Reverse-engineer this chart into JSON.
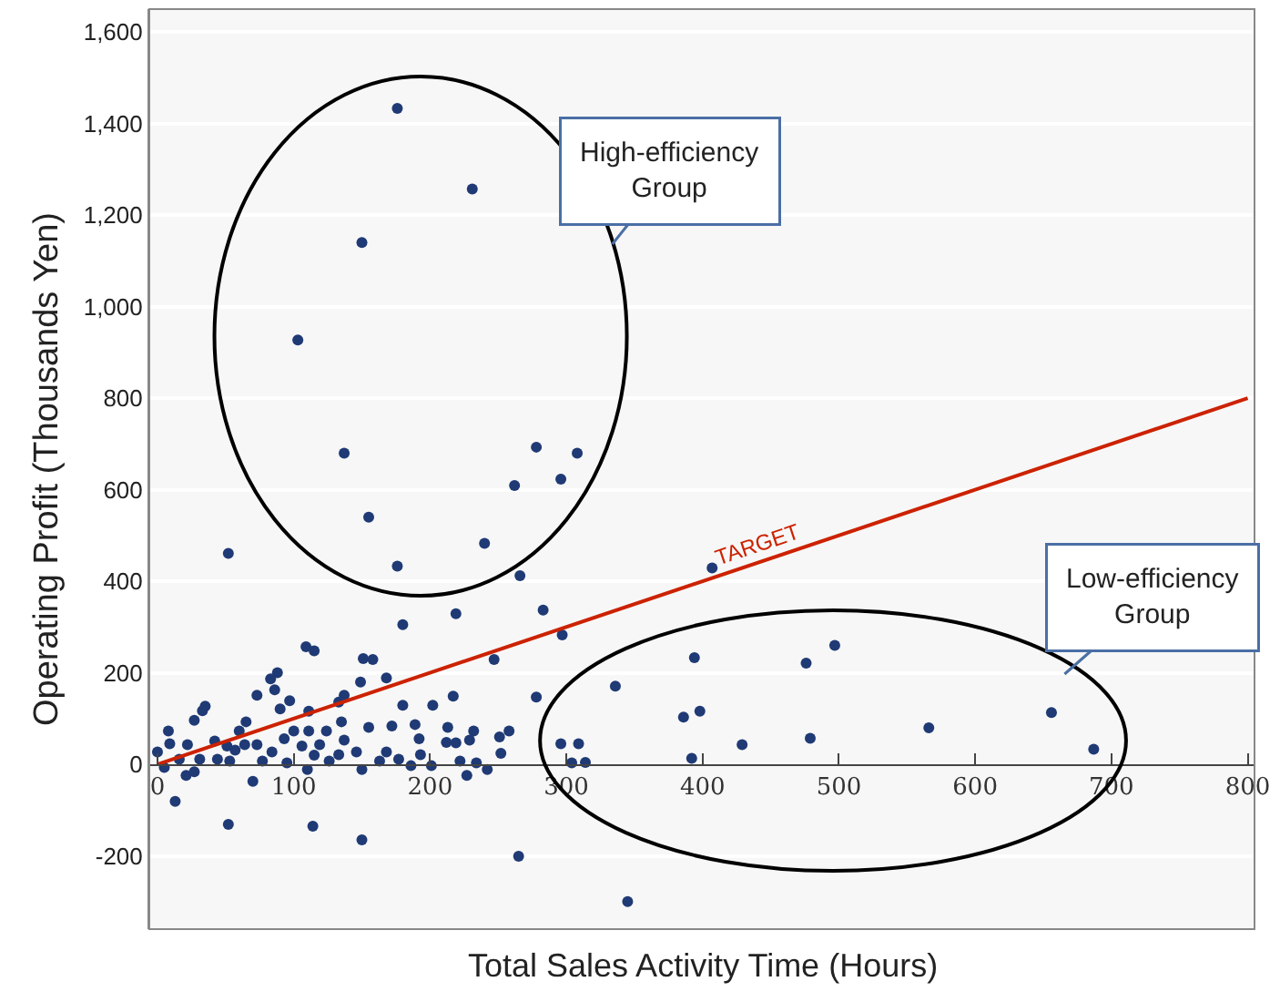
{
  "chart_data": {
    "type": "scatter",
    "xlabel": "Total Sales Activity Time (Hours)",
    "ylabel": "Operating Profit (Thousands Yen)",
    "xlim": [
      -6,
      805
    ],
    "ylim": [
      -360,
      1650
    ],
    "xticks": [
      0,
      100,
      200,
      300,
      400,
      500,
      600,
      700,
      800
    ],
    "yticks": [
      {
        "value": -200,
        "label": "-200"
      },
      0,
      200,
      400,
      600,
      800,
      {
        "value": 1000,
        "label": "1,000"
      },
      {
        "value": 1200,
        "label": "1,200"
      },
      {
        "value": 1400,
        "label": "1,400"
      },
      {
        "value": 1600,
        "label": "1,600"
      }
    ],
    "grid": "y",
    "marker": "circle",
    "annotations": [
      "High-efficiency\nGroup",
      "Low-efficiency\nGroup"
    ],
    "series": [
      {
        "color": "#1f3a75",
        "x": [
          176,
          231,
          150,
          103,
          137,
          278,
          308,
          262,
          296,
          155,
          240,
          176,
          52,
          266,
          283,
          297,
          407,
          394,
          497,
          476,
          336,
          278,
          386,
          398,
          656,
          566,
          479,
          429,
          296,
          309,
          304,
          314,
          392,
          687,
          258,
          265,
          345,
          180,
          219,
          247,
          109,
          115,
          151,
          158,
          88,
          83,
          86,
          73,
          97,
          90,
          149,
          168,
          137,
          133,
          35,
          33,
          27,
          65,
          60,
          111,
          180,
          202,
          217,
          135,
          155,
          172,
          189,
          213,
          232,
          251,
          8,
          9,
          22,
          42,
          51,
          100,
          106,
          119,
          124,
          111,
          192,
          212,
          219,
          229,
          252,
          193,
          168,
          146,
          133,
          84,
          73,
          64,
          44,
          31,
          16,
          0,
          5,
          21,
          27,
          53,
          77,
          95,
          110,
          126,
          150,
          163,
          177,
          186,
          201,
          222,
          234,
          242,
          227,
          70,
          13,
          52,
          114,
          150,
          57,
          93,
          115,
          137
        ],
        "values": [
          1433,
          1257,
          1140,
          927,
          680,
          693,
          680,
          609,
          623,
          540,
          483,
          433,
          461,
          412,
          337,
          283,
          429,
          233,
          260,
          221,
          171,
          147,
          103,
          116,
          113,
          80,
          57,
          43,
          45,
          45,
          3,
          4,
          13,
          33,
          73,
          -201,
          -300,
          305,
          329,
          229,
          257,
          248,
          231,
          229,
          200,
          187,
          163,
          151,
          139,
          121,
          180,
          189,
          151,
          136,
          127,
          117,
          96,
          93,
          73,
          116,
          129,
          129,
          149,
          93,
          81,
          84,
          87,
          81,
          73,
          60,
          73,
          45,
          43,
          51,
          40,
          73,
          40,
          43,
          73,
          73,
          56,
          48,
          47,
          53,
          24,
          21,
          27,
          27,
          21,
          27,
          43,
          43,
          11,
          11,
          11,
          27,
          -7,
          -24,
          -16,
          7,
          7,
          3,
          -11,
          7,
          -11,
          7,
          11,
          -3,
          -3,
          7,
          3,
          -11,
          -24,
          -37,
          -81,
          -131,
          -135,
          -165,
          31,
          56,
          20,
          53
        ]
      },
      {
        "type": "line",
        "name": "TARGET",
        "color": "#cc2200",
        "marker": "none",
        "x": [
          0,
          800
        ],
        "values": [
          0,
          800
        ]
      }
    ]
  }
}
